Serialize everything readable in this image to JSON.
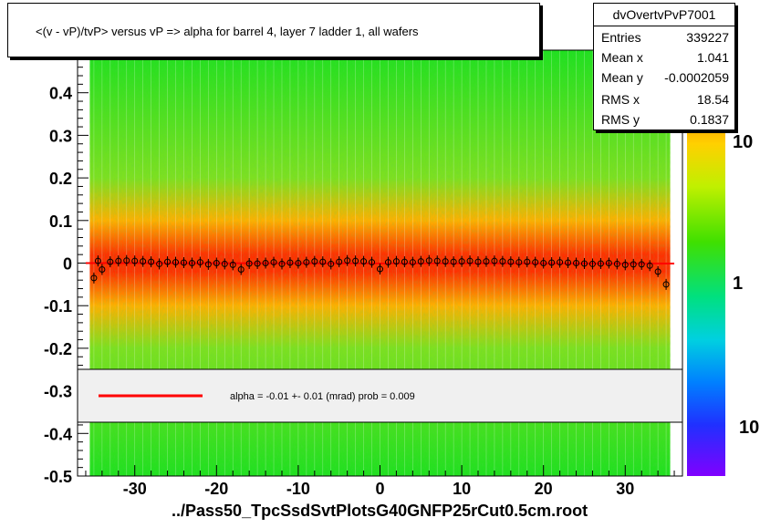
{
  "title": "<(v - vP)/tvP> versus   vP => alpha for barrel 4, layer 7 ladder 1, all wafers",
  "xfile_label": "../Pass50_TpcSsdSvtPlotsG40GNFP25rCut0.5cm.root",
  "stats": {
    "name": "dvOvertvPvP7001",
    "rows": [
      {
        "key": "Entries",
        "value": "339227"
      },
      {
        "key": "Mean x",
        "value": "1.041"
      },
      {
        "key": "Mean y",
        "value": "-0.0002059"
      },
      {
        "key": "RMS x",
        "value": "18.54"
      },
      {
        "key": "RMS y",
        "value": "0.1837"
      }
    ]
  },
  "fit": {
    "legend_text": "alpha =   -0.01 +-  0.01 (mrad) prob = 0.009",
    "line_color": "#ff0000"
  },
  "colors": {
    "band_low": "#1fe01f",
    "band_high": "#ff2000",
    "legend_bg": "#f0f0f0"
  },
  "chart_data": {
    "type": "heatmap",
    "xlim": [
      -37,
      37
    ],
    "ylim": [
      -0.5,
      0.5
    ],
    "xticks": [
      -30,
      -20,
      -10,
      0,
      10,
      20,
      30
    ],
    "xtick_labels": [
      "-30",
      "-20",
      "-10",
      "0",
      "10",
      "20",
      "30"
    ],
    "yticks": [
      0.4,
      0.3,
      0.2,
      0.1,
      0,
      -0.1,
      -0.2,
      -0.3,
      -0.4,
      -0.5
    ],
    "ytick_labels": [
      "0.4",
      "0.3",
      "0.2",
      "0.1",
      "0",
      "-0.1",
      "-0.2",
      "-0.3",
      "-0.4",
      "-0.5"
    ],
    "colorbar_labels": [
      "10",
      "1",
      "10"
    ],
    "fit_line": {
      "x": [
        -36,
        36
      ],
      "y": [
        0.0,
        -0.001
      ]
    },
    "profile_points": {
      "x": [
        -35,
        -34.5,
        -34,
        -33,
        -32,
        -31,
        -30,
        -29,
        -28,
        -27,
        -26,
        -25,
        -24,
        -23,
        -22,
        -21,
        -20,
        -19,
        -18,
        -17,
        -16,
        -15,
        -14,
        -13,
        -12,
        -11,
        -10,
        -9,
        -8,
        -7,
        -6,
        -5,
        -4,
        -3,
        -2,
        -1,
        0,
        1,
        2,
        3,
        4,
        5,
        6,
        7,
        8,
        9,
        10,
        11,
        12,
        13,
        14,
        15,
        16,
        17,
        18,
        19,
        20,
        21,
        22,
        23,
        24,
        25,
        26,
        27,
        28,
        29,
        30,
        31,
        32,
        33,
        34,
        35
      ],
      "y": [
        -0.035,
        0.005,
        -0.015,
        0.003,
        0.005,
        0.006,
        0.005,
        0.004,
        0.003,
        -0.002,
        0.003,
        0.002,
        0.001,
        0.0,
        0.002,
        -0.003,
        0.0,
        -0.002,
        -0.004,
        -0.015,
        -0.001,
        -0.001,
        0.0,
        0.002,
        -0.002,
        0.001,
        0.0,
        0.002,
        0.004,
        0.003,
        -0.002,
        0.003,
        0.006,
        0.005,
        0.004,
        0.002,
        -0.014,
        0.002,
        0.004,
        0.003,
        0.002,
        0.004,
        0.006,
        0.005,
        0.004,
        0.003,
        0.004,
        0.005,
        0.003,
        0.004,
        0.005,
        0.004,
        0.003,
        0.002,
        0.003,
        0.002,
        0.0,
        0.001,
        0.002,
        0.001,
        0.0,
        -0.001,
        -0.002,
        -0.001,
        0.0,
        -0.002,
        -0.004,
        -0.003,
        -0.003,
        -0.006,
        -0.02,
        -0.05
      ]
    }
  }
}
